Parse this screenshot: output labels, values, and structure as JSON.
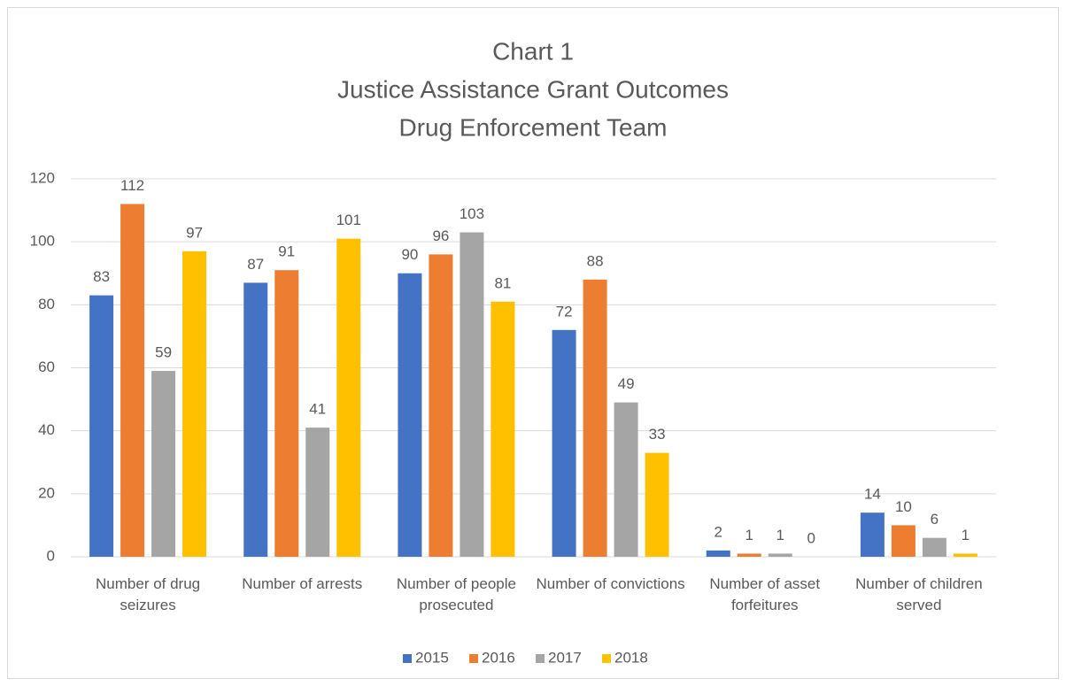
{
  "chart_data": {
    "type": "bar",
    "title": [
      "Chart 1",
      "Justice Assistance Grant Outcomes",
      "Drug Enforcement Team"
    ],
    "categories": [
      "Number of drug seizures",
      "Number of arrests",
      "Number of people prosecuted",
      "Number of convictions",
      "Number of asset forfeitures",
      "Number of children served"
    ],
    "series": [
      {
        "name": "2015",
        "color": "#4472c4",
        "values": [
          83,
          87,
          90,
          72,
          2,
          14
        ]
      },
      {
        "name": "2016",
        "color": "#ed7d31",
        "values": [
          112,
          91,
          96,
          88,
          1,
          10
        ]
      },
      {
        "name": "2017",
        "color": "#a5a5a5",
        "values": [
          59,
          41,
          103,
          49,
          1,
          6
        ]
      },
      {
        "name": "2018",
        "color": "#ffc000",
        "values": [
          97,
          101,
          81,
          33,
          0,
          1
        ]
      }
    ],
    "ylim": [
      0,
      120
    ],
    "yticks": [
      0,
      20,
      40,
      60,
      80,
      100,
      120
    ],
    "grid": true,
    "legend": "bottom"
  }
}
